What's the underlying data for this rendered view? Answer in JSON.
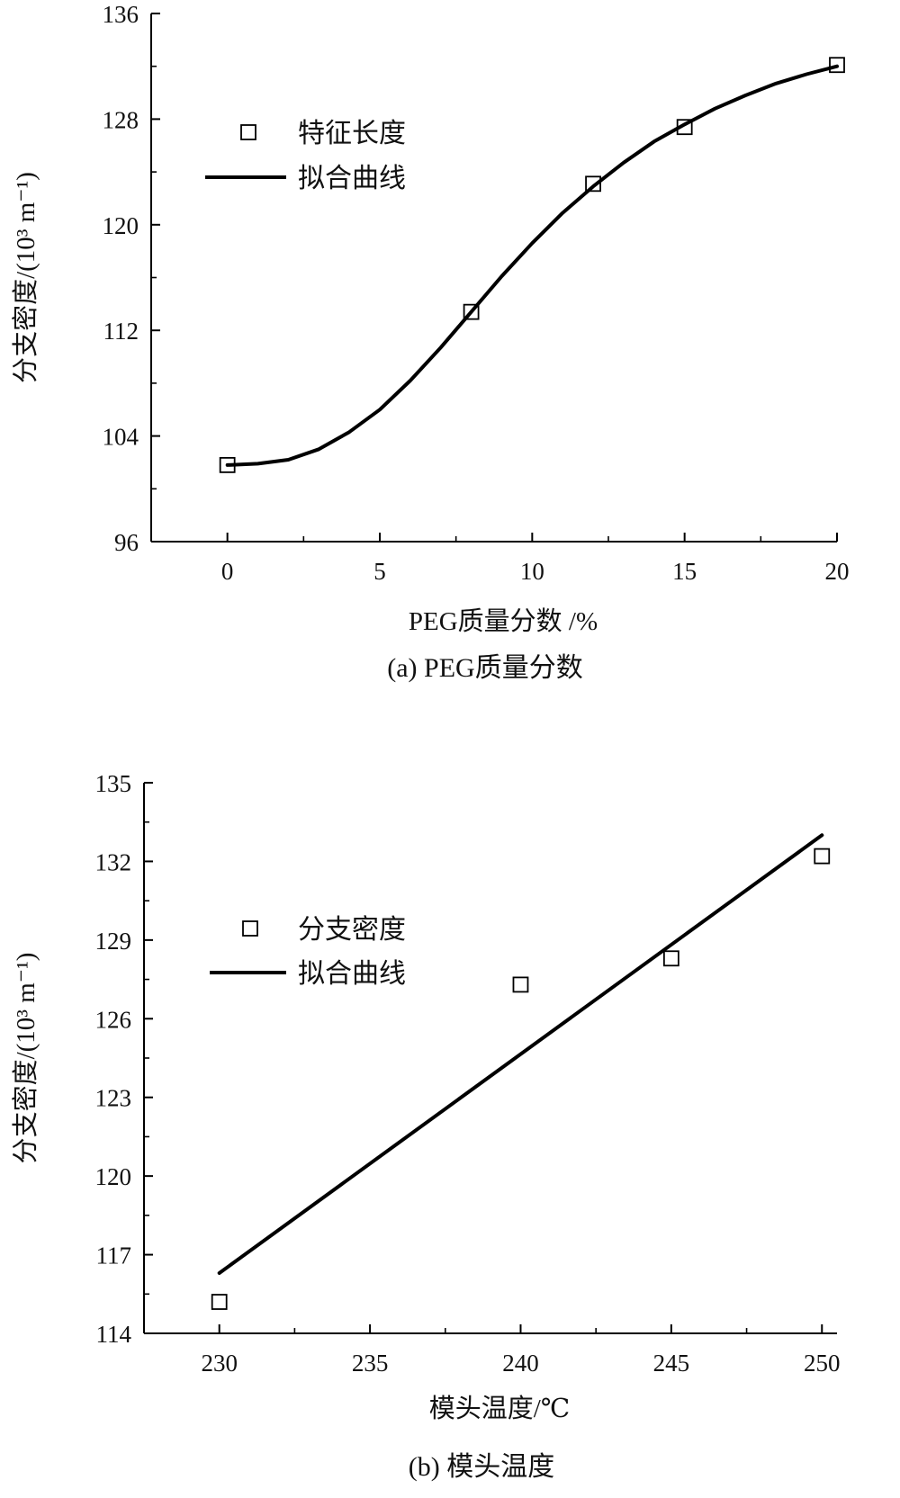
{
  "chart_data": [
    {
      "type": "scatter",
      "caption": "(a) PEG质量分数",
      "xlabel": "PEG质量分数 /%",
      "ylabel": "分支密度/(10³ m⁻¹)",
      "xlim": [
        -2.5,
        20
      ],
      "ylim": [
        96,
        136
      ],
      "xticks": [
        0,
        5,
        10,
        15,
        20
      ],
      "yticks": [
        96,
        104,
        112,
        120,
        128,
        136
      ],
      "legend_position": "upper-left",
      "series": [
        {
          "name": "特征长度",
          "kind": "marker",
          "marker": "square",
          "x": [
            0,
            8,
            12,
            15,
            20
          ],
          "y": [
            101.8,
            113.4,
            123.1,
            127.4,
            132.1
          ]
        },
        {
          "name": "拟合曲线",
          "kind": "line",
          "fit": "sigmoid",
          "x": [
            0,
            1,
            2,
            3,
            4,
            5,
            6,
            7,
            8,
            9,
            10,
            11,
            12,
            13,
            14,
            15,
            16,
            17,
            18,
            19,
            20
          ],
          "y": [
            101.8,
            101.9,
            102.2,
            103.0,
            104.3,
            106.0,
            108.2,
            110.7,
            113.4,
            116.1,
            118.6,
            120.9,
            122.9,
            124.7,
            126.3,
            127.6,
            128.8,
            129.8,
            130.7,
            131.4,
            132.0
          ]
        }
      ]
    },
    {
      "type": "scatter",
      "caption": "(b) 模头温度",
      "xlabel": "模头温度/℃",
      "ylabel": "分支密度/(10³ m⁻¹)",
      "xlim": [
        227.5,
        250.5
      ],
      "ylim": [
        114,
        135
      ],
      "xticks": [
        230,
        235,
        240,
        245,
        250
      ],
      "yticks": [
        114,
        117,
        120,
        123,
        126,
        129,
        132,
        135
      ],
      "legend_position": "upper-left",
      "series": [
        {
          "name": "分支密度",
          "kind": "marker",
          "marker": "square",
          "x": [
            230,
            240,
            245,
            250
          ],
          "y": [
            115.2,
            127.3,
            128.3,
            132.2
          ]
        },
        {
          "name": "拟合曲线",
          "kind": "line",
          "fit": "linear",
          "x": [
            230,
            250
          ],
          "y": [
            116.3,
            133.0
          ]
        }
      ]
    }
  ]
}
